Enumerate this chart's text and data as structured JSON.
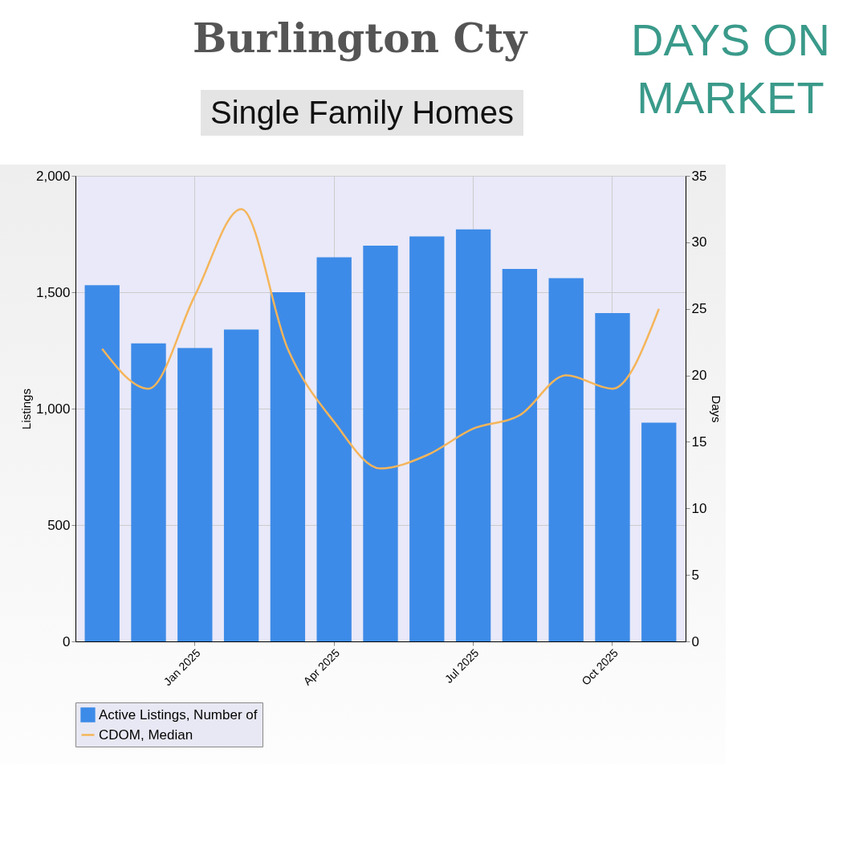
{
  "chart_data": {
    "type": "bar",
    "title": "Burlington Cty",
    "subtitle": "Single Family Homes",
    "annotations": [
      "DAYS ON MARKET"
    ],
    "ylabel": "Listings",
    "y2label": "Days",
    "categories": [
      null,
      null,
      "Jan 2025",
      null,
      null,
      "Apr 2025",
      null,
      null,
      "Jul 2025",
      null,
      null,
      "Oct 2025",
      null
    ],
    "series": [
      {
        "name": "Active Listings, Number of",
        "color": "#3d8be8",
        "values": [
          1530,
          1280,
          1260,
          1340,
          1500,
          1650,
          1700,
          1740,
          1770,
          1600,
          1560,
          1410,
          940
        ]
      },
      {
        "name": "CDOM, Median",
        "type": "line",
        "axis": "y2",
        "color": "#f5b55a",
        "values": [
          22,
          19,
          26,
          32.5,
          22,
          16.5,
          13,
          14,
          16,
          17,
          20,
          19,
          25
        ]
      }
    ],
    "ylim": [
      0,
      2000
    ],
    "yticks": [
      0,
      {
        "value": 500,
        "label": "500"
      },
      {
        "value": 1000,
        "label": "1,000"
      },
      {
        "value": 1500,
        "label": "1,500"
      },
      {
        "value": 2000,
        "label": "2,000"
      }
    ],
    "y2lim": [
      0,
      35
    ],
    "y2ticks": [
      0,
      5,
      10,
      15,
      20,
      25,
      30,
      35
    ],
    "grid": true,
    "legend": "bottom"
  }
}
